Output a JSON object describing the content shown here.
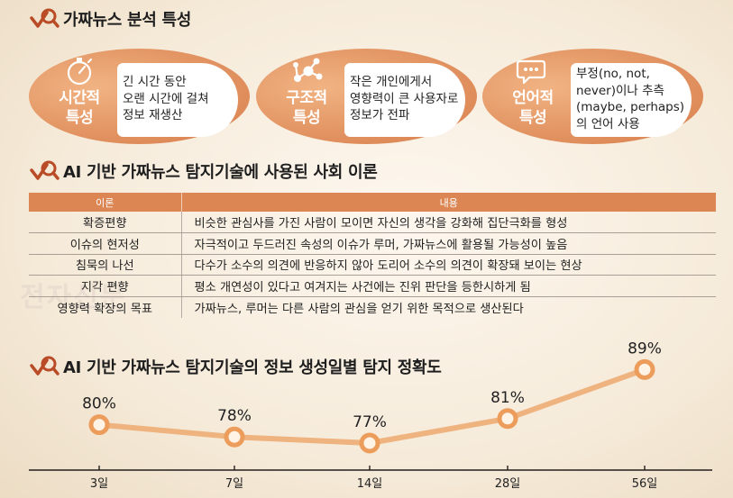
{
  "section1": {
    "title": "가짜뉴스 분석 특성",
    "traits": [
      {
        "label_line1": "시간적",
        "label_line2": "특성",
        "icon": "stopwatch-icon",
        "lines": [
          "긴 시간 동안",
          "오랜 시간에 걸쳐",
          "정보 재생산"
        ]
      },
      {
        "label_line1": "구조적",
        "label_line2": "특성",
        "icon": "network-icon",
        "lines": [
          "작은 개인에게서",
          "영향력이 큰 사용자로",
          "정보가 전파"
        ]
      },
      {
        "label_line1": "언어적",
        "label_line2": "특성",
        "icon": "speech-bubble-icon",
        "lines": [
          "부정(no, not,",
          "never)이나 추측",
          "(maybe, perhaps)",
          "의 언어 사용"
        ]
      }
    ]
  },
  "section2": {
    "title": "AI 기반 가짜뉴스 탐지기술에 사용된 사회 이론",
    "headers": [
      "이론",
      "내용"
    ],
    "rows": [
      {
        "theory": "확증편향",
        "content": "비슷한 관심사를 가진 사람이 모이면 자신의 생각을 강화해 집단극화를 형성"
      },
      {
        "theory": "이슈의 현저성",
        "content": "자극적이고 두드러진 속성의 이슈가 루머, 가짜뉴스에 활용될 가능성이 높음"
      },
      {
        "theory": "침묵의 나선",
        "content": "다수가 소수의 의견에 반응하지 않아 도리어 소수의 의견이 확장돼 보이는 현상"
      },
      {
        "theory": "지각 편향",
        "content": "평소 개연성이 있다고 여겨지는 사건에는 진위 판단을 등한시하게 됨"
      },
      {
        "theory": "영향력 확장의 목표",
        "content": "가짜뉴스, 루머는 다른 사람의 관심을 얻기 위한 목적으로 생산된다"
      }
    ]
  },
  "watermark": "전자신문",
  "colors": {
    "accent": "#db8653",
    "ellipse": "#df8d5b",
    "line": "#eeb37f",
    "marker_stroke": "#ec9d5c",
    "background": "#f6ebda"
  },
  "chart_data": {
    "type": "line",
    "title": "AI 기반 가짜뉴스 탐지기술의 정보 생성일별 탐지 정확도",
    "categories": [
      "3일",
      "7일",
      "14일",
      "28일",
      "56일"
    ],
    "values": [
      80,
      78,
      77,
      81,
      89
    ],
    "value_labels": [
      "80%",
      "78%",
      "77%",
      "81%",
      "89%"
    ],
    "xlabel": "",
    "ylabel": "",
    "ylim": [
      70,
      95
    ],
    "grid": false,
    "legend": "none"
  }
}
